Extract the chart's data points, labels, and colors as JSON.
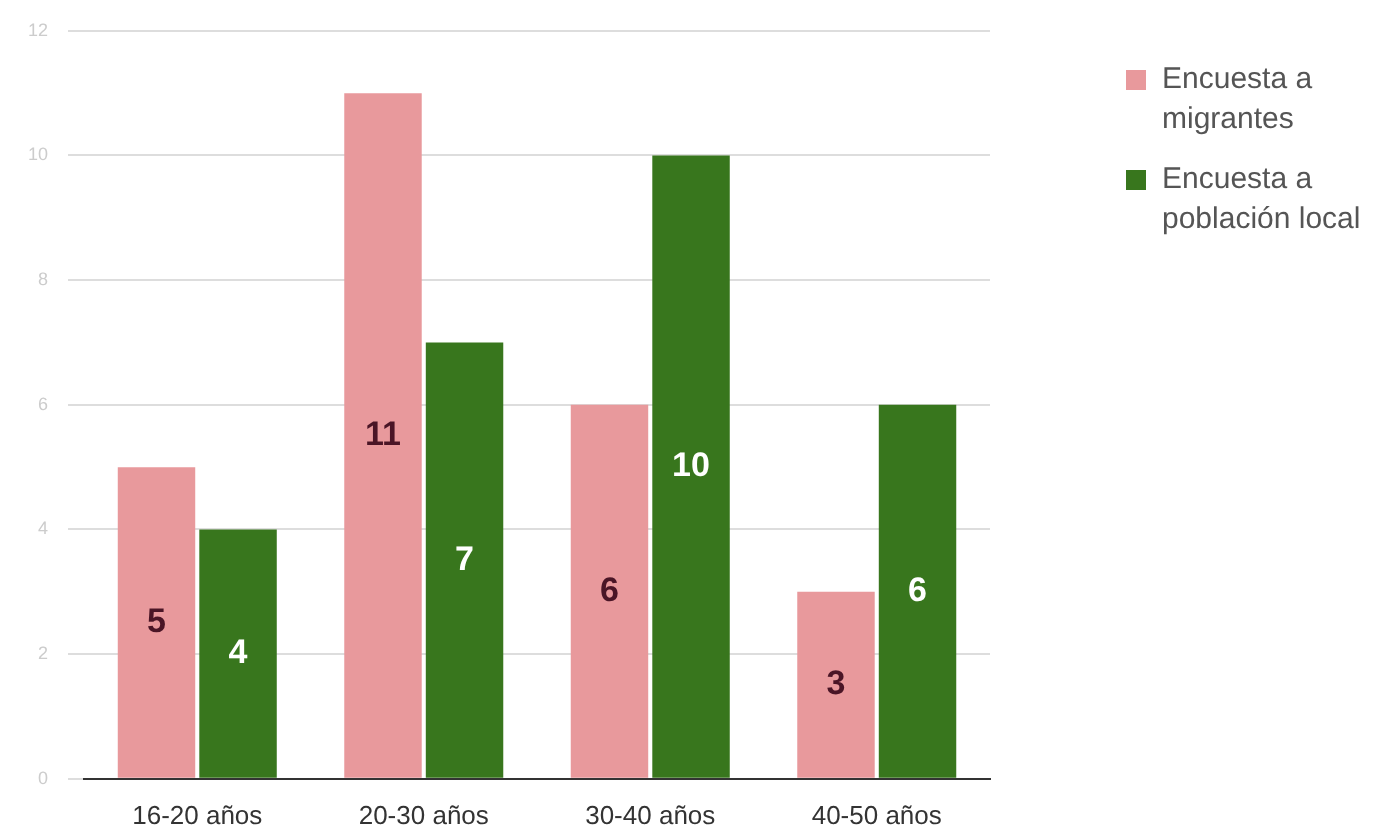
{
  "chart_data": {
    "type": "bar",
    "categories": [
      "16-20 años",
      "20-30 años",
      "30-40 años",
      "40-50 años"
    ],
    "series": [
      {
        "name": "Encuesta a migrantes",
        "color": "#e8999c",
        "values": [
          5,
          11,
          6,
          3
        ]
      },
      {
        "name": "Encuesta a población local",
        "color": "#38761d",
        "values": [
          4,
          7,
          10,
          6
        ]
      }
    ],
    "ylim": [
      0,
      12
    ],
    "yticks": [
      0,
      2,
      4,
      6,
      8,
      10,
      12
    ],
    "grid": "y",
    "legend": "top right",
    "data_labels": true
  }
}
